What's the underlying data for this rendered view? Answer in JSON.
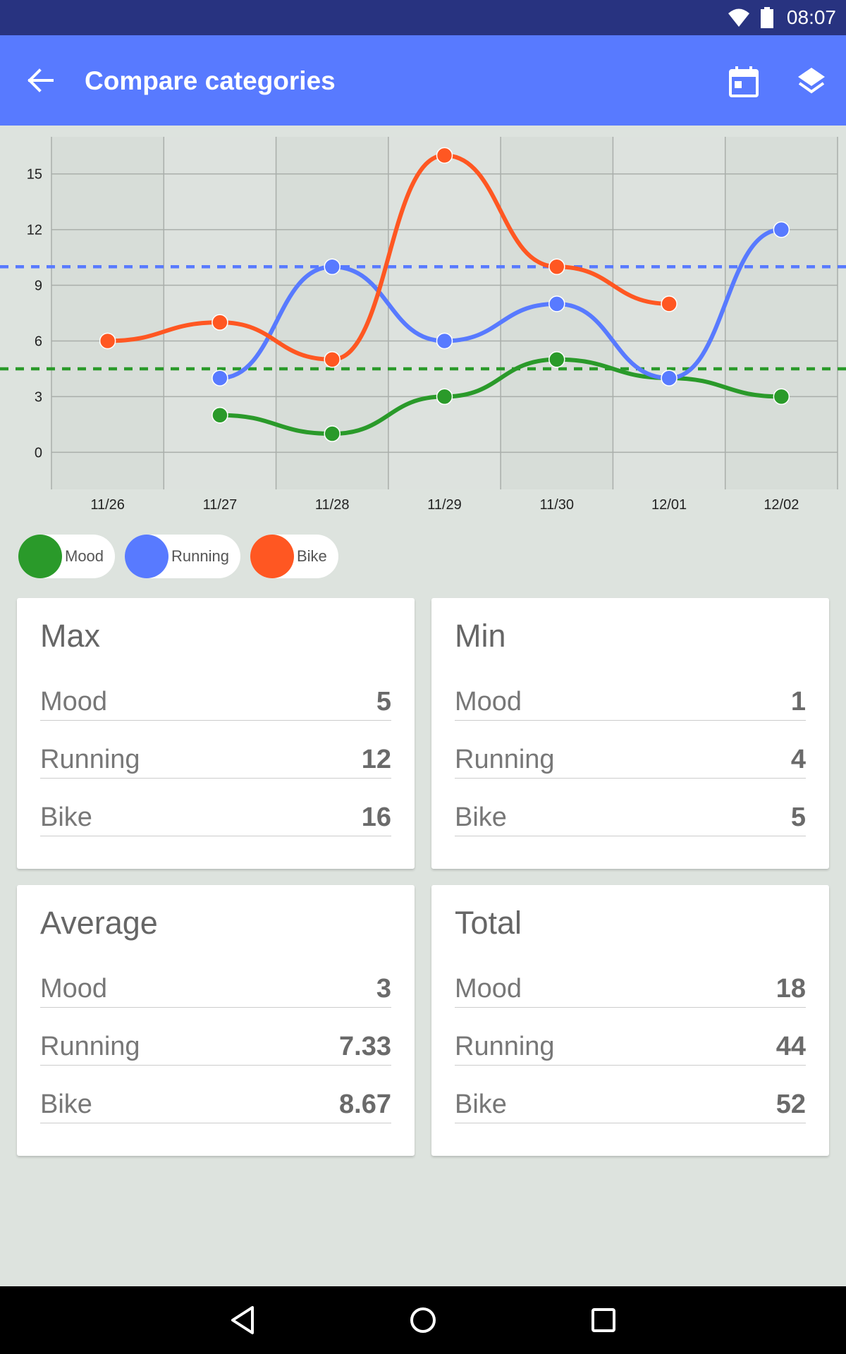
{
  "status_bar": {
    "time": "08:07"
  },
  "app_bar": {
    "title": "Compare categories"
  },
  "colors": {
    "mood": "#2a9a2a",
    "running": "#587aff",
    "bike": "#ff5722"
  },
  "legend": [
    {
      "label": "Mood",
      "color": "#2a9a2a"
    },
    {
      "label": "Running",
      "color": "#587aff"
    },
    {
      "label": "Bike",
      "color": "#ff5722"
    }
  ],
  "chart_data": {
    "type": "line",
    "categories": [
      "11/26",
      "11/27",
      "11/28",
      "11/29",
      "11/30",
      "12/01",
      "12/02"
    ],
    "yticks": [
      0,
      3,
      6,
      9,
      12,
      15
    ],
    "ylim": [
      -2,
      17
    ],
    "grid": true,
    "series": [
      {
        "name": "Mood",
        "color": "#2a9a2a",
        "x": [
          1,
          2,
          3,
          4,
          5,
          6
        ],
        "values": [
          2,
          1,
          3,
          5,
          4,
          3
        ]
      },
      {
        "name": "Running",
        "color": "#587aff",
        "x": [
          1,
          2,
          3,
          4,
          5,
          6
        ],
        "values": [
          4,
          10,
          6,
          8,
          4,
          12
        ]
      },
      {
        "name": "Bike",
        "color": "#ff5722",
        "x": [
          0,
          1,
          2,
          3,
          4,
          5
        ],
        "values": [
          6,
          7,
          5,
          16,
          10,
          8
        ]
      }
    ],
    "reference_lines": [
      {
        "series": "Running",
        "value": 10,
        "color": "#587aff"
      },
      {
        "series": "Mood",
        "value": 4.5,
        "color": "#2a9a2a"
      }
    ]
  },
  "cards": {
    "max": {
      "title": "Max",
      "rows": [
        {
          "name": "Mood",
          "value": "5"
        },
        {
          "name": "Running",
          "value": "12"
        },
        {
          "name": "Bike",
          "value": "16"
        }
      ]
    },
    "min": {
      "title": "Min",
      "rows": [
        {
          "name": "Mood",
          "value": "1"
        },
        {
          "name": "Running",
          "value": "4"
        },
        {
          "name": "Bike",
          "value": "5"
        }
      ]
    },
    "average": {
      "title": "Average",
      "rows": [
        {
          "name": "Mood",
          "value": "3"
        },
        {
          "name": "Running",
          "value": "7.33"
        },
        {
          "name": "Bike",
          "value": "8.67"
        }
      ]
    },
    "total": {
      "title": "Total",
      "rows": [
        {
          "name": "Mood",
          "value": "18"
        },
        {
          "name": "Running",
          "value": "44"
        },
        {
          "name": "Bike",
          "value": "52"
        }
      ]
    }
  }
}
